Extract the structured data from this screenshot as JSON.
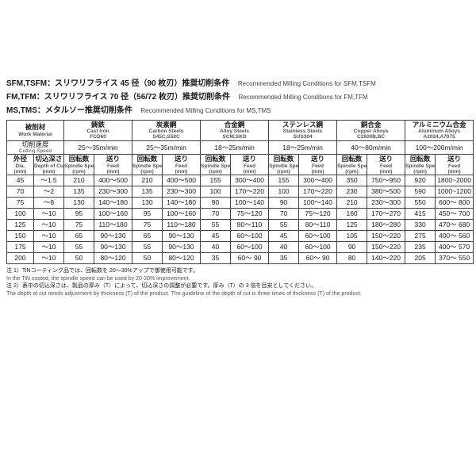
{
  "heading": {
    "lines": [
      {
        "jp": "SFM,TSFM：スリワリフライス 45 径（90 枚刃）推奨切削条件",
        "en": "Recommended Milling Conditions for SFM,TSFM"
      },
      {
        "jp": "FM,TFM：スリワリフライス 70 径（56/72 枚刃）推奨切削条件",
        "en": "Recommended Milling Conditions for FM,TFM"
      },
      {
        "jp": "MS,TMS：メタルソー推奨切削条件",
        "en": "Recommended Milling Conditions for MS,TMS"
      }
    ]
  },
  "columns": {
    "work_material": {
      "jp": "被削材",
      "en": "Work Material"
    },
    "cutting_speed": {
      "jp": "切削速度",
      "en": "Cutting Speed"
    },
    "dia": {
      "jp": "外径",
      "en": "Dia.",
      "unit": "(mm)"
    },
    "doc": {
      "jp": "切込深さ",
      "en": "Depth of Cut",
      "unit": "(mm)"
    },
    "rpm": {
      "jp": "回転数",
      "en": "Spindle Speed",
      "unit": "(rpm)"
    },
    "feed": {
      "jp": "送り",
      "en": "Feed",
      "unit": "(mm)"
    }
  },
  "materials": [
    {
      "jp": "鋳鉄",
      "en": "Cast Iron",
      "grade": "FCD60",
      "speed": "25～35m/min"
    },
    {
      "jp": "炭素鋼",
      "en": "Carbon Steels",
      "grade": "S45C,S50C",
      "speed": "25～35m/min"
    },
    {
      "jp": "合金鋼",
      "en": "Alloy Steels",
      "grade": "SCM,SKD",
      "speed": "18～25m/min"
    },
    {
      "jp": "ステンレス鋼",
      "en": "Stainless Steels",
      "grade": "SUS304",
      "speed": "18～25m/min"
    },
    {
      "jp": "銅合金",
      "en": "Copper Alloys",
      "grade": "C2600B,BC",
      "speed": "40～80m/min"
    },
    {
      "jp": "アルミニウム合金",
      "en": "Aluminum Alloys",
      "grade": "A2024,A7075",
      "speed": "100～200m/min"
    }
  ],
  "rows": [
    {
      "dia": "45",
      "doc": "～1.5",
      "cells": [
        [
          "210",
          "400～500"
        ],
        [
          "210",
          "400～500"
        ],
        [
          "155",
          "300～400"
        ],
        [
          "155",
          "300～400"
        ],
        [
          "350",
          "750～950"
        ],
        [
          "920",
          "1800~2000"
        ]
      ]
    },
    {
      "dia": "70",
      "doc": "～2",
      "cells": [
        [
          "135",
          "230～300"
        ],
        [
          "135",
          "230～300"
        ],
        [
          "100",
          "170～220"
        ],
        [
          "100",
          "170～220"
        ],
        [
          "230",
          "380～500"
        ],
        [
          "590",
          "1000~1200"
        ]
      ]
    },
    {
      "dia": "75",
      "doc": "～8",
      "cells": [
        [
          "130",
          "140～180"
        ],
        [
          "130",
          "140～180"
        ],
        [
          "90",
          "100～140"
        ],
        [
          "90",
          "100～140"
        ],
        [
          "210",
          "230～300"
        ],
        [
          "550",
          "600～ 800"
        ]
      ]
    },
    {
      "dia": "100",
      "doc": "～10",
      "cells": [
        [
          "95",
          "100～160"
        ],
        [
          "95",
          "100～160"
        ],
        [
          "70",
          "75～120"
        ],
        [
          "70",
          "75～120"
        ],
        [
          "160",
          "170～270"
        ],
        [
          "415",
          "450～ 700"
        ]
      ]
    },
    {
      "dia": "125",
      "doc": "～10",
      "cells": [
        [
          "75",
          "110～180"
        ],
        [
          "75",
          "110～180"
        ],
        [
          "55",
          "80～110"
        ],
        [
          "55",
          "80～110"
        ],
        [
          "125",
          "180～280"
        ],
        [
          "330",
          "470～ 680"
        ]
      ]
    },
    {
      "dia": "150",
      "doc": "～10",
      "cells": [
        [
          "65",
          "90～130"
        ],
        [
          "65",
          "90～130"
        ],
        [
          "45",
          "60～100"
        ],
        [
          "45",
          "60～100"
        ],
        [
          "105",
          "150～220"
        ],
        [
          "275",
          "400～ 560"
        ]
      ]
    },
    {
      "dia": "175",
      "doc": "～10",
      "cells": [
        [
          "55",
          "90～130"
        ],
        [
          "55",
          "90～130"
        ],
        [
          "40",
          "60～100"
        ],
        [
          "40",
          "60～100"
        ],
        [
          "90",
          "150～220"
        ],
        [
          "235",
          "400～ 570"
        ]
      ]
    },
    {
      "dia": "200",
      "doc": "～10",
      "cells": [
        [
          "50",
          "80～120"
        ],
        [
          "50",
          "80～120"
        ],
        [
          "35",
          "60～ 90"
        ],
        [
          "35",
          "60～ 90"
        ],
        [
          "80",
          "140～220"
        ],
        [
          "205",
          "370～ 550"
        ]
      ]
    }
  ],
  "notes": [
    {
      "jp": "注 1）TiNコーティング品では、回転数を 20～30%アップで御使用可能です。",
      "en": "In the TiN coated, the spindle speed can be used by 20-30% improvement."
    },
    {
      "jp": "注 2）表中の切込深さは、製品の厚み（T）によって、切込深さの調整が必要です。厚み（T）の 3 倍を目安としてください。",
      "en": "The depth of cut needs adjustment by thickness (T) of the product. The guideline of the depth of cut is three times of thickness (T) of the product."
    }
  ],
  "style": {
    "border_color": "#444444",
    "text_color": "#1a1a1a",
    "en_color": "#555555",
    "bg": "#ffffff"
  }
}
